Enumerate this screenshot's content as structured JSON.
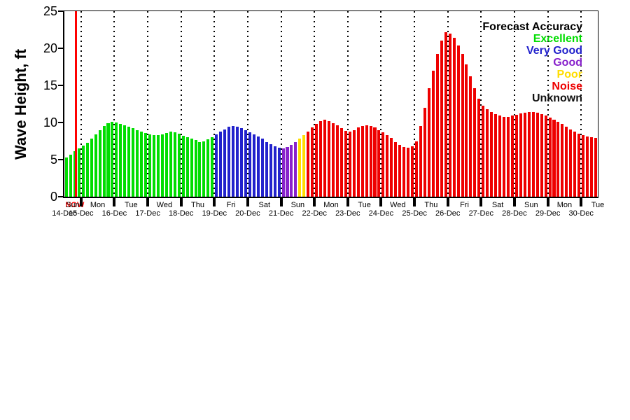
{
  "chart_data": {
    "type": "bar",
    "title": "",
    "ylabel": "Wave Height, ft",
    "ylim": [
      0,
      25
    ],
    "yticks": [
      0,
      5,
      10,
      15,
      20,
      25
    ],
    "x_day_names": [
      "Sun",
      "Mon",
      "Tue",
      "Wed",
      "Thu",
      "Fri",
      "Sat",
      "Sun",
      "Mon",
      "Tue",
      "Wed",
      "Thu",
      "Fri",
      "Sat",
      "Sun",
      "Mon",
      "Tue"
    ],
    "x_date_labels": [
      "14-Dec",
      "15-Dec",
      "16-Dec",
      "17-Dec",
      "18-Dec",
      "19-Dec",
      "20-Dec",
      "21-Dec",
      "22-Dec",
      "23-Dec",
      "24-Dec",
      "25-Dec",
      "26-Dec",
      "27-Dec",
      "28-Dec",
      "29-Dec",
      "30-Dec"
    ],
    "bars_per_day": 8,
    "first_day_bars": 4,
    "time_step_hours": 3,
    "heights": [
      5.3,
      5.7,
      6.1,
      6.5,
      6.9,
      7.3,
      7.8,
      8.4,
      9.0,
      9.5,
      9.9,
      10.1,
      10.0,
      9.8,
      9.6,
      9.4,
      9.2,
      9.0,
      8.8,
      8.6,
      8.4,
      8.3,
      8.3,
      8.4,
      8.6,
      8.8,
      8.7,
      8.5,
      8.2,
      8.0,
      7.8,
      7.6,
      7.4,
      7.5,
      7.7,
      8.0,
      8.4,
      8.8,
      9.1,
      9.4,
      9.5,
      9.4,
      9.2,
      9.0,
      8.7,
      8.4,
      8.1,
      7.8,
      7.4,
      7.1,
      6.8,
      6.6,
      6.5,
      6.7,
      7.0,
      7.4,
      7.8,
      8.3,
      8.8,
      9.3,
      9.8,
      10.2,
      10.4,
      10.2,
      9.9,
      9.6,
      9.2,
      8.9,
      8.8,
      9.0,
      9.3,
      9.5,
      9.6,
      9.5,
      9.3,
      9.0,
      8.7,
      8.3,
      7.9,
      7.4,
      7.0,
      6.7,
      6.6,
      6.8,
      7.5,
      9.5,
      12.0,
      14.6,
      17.0,
      19.2,
      21.0,
      22.2,
      22.0,
      21.4,
      20.4,
      19.2,
      17.8,
      16.2,
      14.6,
      13.2,
      12.3,
      11.8,
      11.4,
      11.1,
      10.9,
      10.8,
      10.8,
      10.9,
      11.0,
      11.2,
      11.3,
      11.4,
      11.4,
      11.3,
      11.1,
      10.9,
      10.7,
      10.4,
      10.1,
      9.8,
      9.4,
      9.1,
      8.8,
      8.5,
      8.3,
      8.1,
      8.0,
      7.9
    ],
    "segments": [
      {
        "category": "Excellent",
        "from": 0,
        "to": 36
      },
      {
        "category": "Very Good",
        "from": 36,
        "to": 52
      },
      {
        "category": "Good",
        "from": 52,
        "to": 56
      },
      {
        "category": "Poor",
        "from": 56,
        "to": 58
      },
      {
        "category": "Noise",
        "from": 58,
        "to": 128
      }
    ],
    "legend": {
      "title": "Forecast Accuracy",
      "entries": [
        {
          "label": "Excellent",
          "color": "#00dd00"
        },
        {
          "label": "Very Good",
          "color": "#2222cc"
        },
        {
          "label": "Good",
          "color": "#8822cc"
        },
        {
          "label": "Poor",
          "color": "#ffdd00"
        },
        {
          "label": "Noise",
          "color": "#ee0000"
        },
        {
          "label": "Unknown",
          "color": "#111111"
        }
      ]
    },
    "now_marker": {
      "label": "NOW",
      "bar_index": 2.5,
      "color": "#ff0000"
    }
  }
}
